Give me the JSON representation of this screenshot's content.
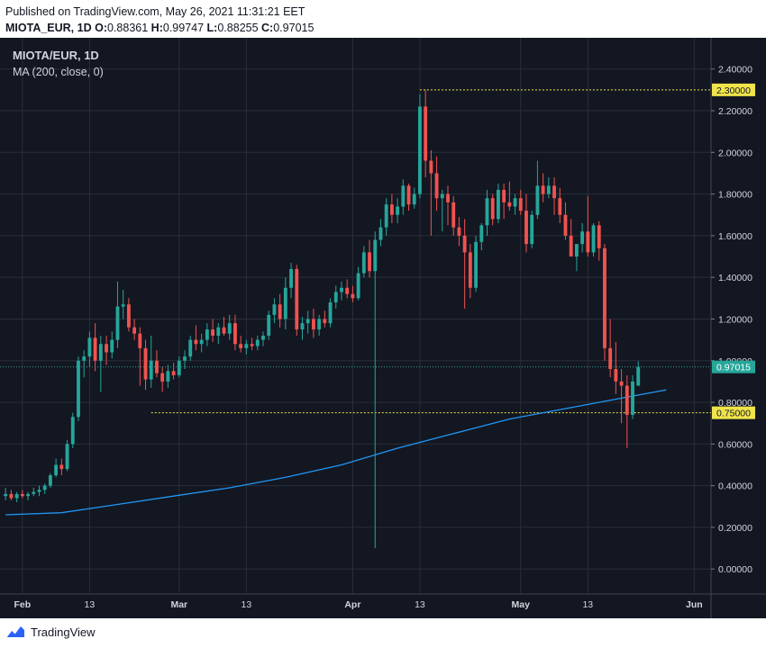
{
  "header": {
    "published": "Published on TradingView.com, May 26, 2021 11:31:21 EET",
    "symbol": "MIOTA_EUR, 1D",
    "o_label": "O:",
    "o_value": "0.88361",
    "h_label": "H:",
    "h_value": "0.99747",
    "l_label": "L:",
    "l_value": "0.88255",
    "c_label": "C:",
    "c_value": "0.97015"
  },
  "legend": {
    "title": "MIOTA/EUR, 1D",
    "indicator": "MA (200, close, 0)"
  },
  "footer": {
    "brand": "TradingView"
  },
  "colors": {
    "background": "#131722",
    "up": "#26a69a",
    "down": "#ef5350",
    "ma": "#2196f3",
    "level_line": "#f0e44a",
    "current_line": "#26a69a",
    "grid": "#2a2e39",
    "axis_text": "#d1d4dc"
  },
  "chart_data": {
    "type": "candlestick",
    "title": "MIOTA/EUR, 1D",
    "y_ticks": [
      "2.40000",
      "2.20000",
      "2.00000",
      "1.80000",
      "1.60000",
      "1.40000",
      "1.20000",
      "1.00000",
      "0.80000",
      "0.60000",
      "0.40000",
      "0.20000",
      "0.00000"
    ],
    "ylim": [
      -0.12,
      2.55
    ],
    "x_ticks": [
      {
        "label": "Feb",
        "day": 3
      },
      {
        "label": "13",
        "day": 15
      },
      {
        "label": "Mar",
        "day": 31
      },
      {
        "label": "13",
        "day": 43
      },
      {
        "label": "Apr",
        "day": 62
      },
      {
        "label": "13",
        "day": 74
      },
      {
        "label": "May",
        "day": 92
      },
      {
        "label": "13",
        "day": 104
      },
      {
        "label": "Jun",
        "day": 123
      }
    ],
    "xlim": [
      -1,
      126
    ],
    "candles": [
      {
        "o": 0.35,
        "h": 0.39,
        "l": 0.33,
        "c": 0.36
      },
      {
        "o": 0.36,
        "h": 0.38,
        "l": 0.33,
        "c": 0.34
      },
      {
        "o": 0.34,
        "h": 0.37,
        "l": 0.32,
        "c": 0.36
      },
      {
        "o": 0.36,
        "h": 0.38,
        "l": 0.34,
        "c": 0.35
      },
      {
        "o": 0.35,
        "h": 0.37,
        "l": 0.33,
        "c": 0.36
      },
      {
        "o": 0.36,
        "h": 0.39,
        "l": 0.35,
        "c": 0.37
      },
      {
        "o": 0.37,
        "h": 0.4,
        "l": 0.35,
        "c": 0.38
      },
      {
        "o": 0.38,
        "h": 0.41,
        "l": 0.36,
        "c": 0.4
      },
      {
        "o": 0.4,
        "h": 0.46,
        "l": 0.39,
        "c": 0.45
      },
      {
        "o": 0.45,
        "h": 0.53,
        "l": 0.44,
        "c": 0.5
      },
      {
        "o": 0.5,
        "h": 0.53,
        "l": 0.45,
        "c": 0.48
      },
      {
        "o": 0.48,
        "h": 0.62,
        "l": 0.47,
        "c": 0.6
      },
      {
        "o": 0.6,
        "h": 0.75,
        "l": 0.58,
        "c": 0.73
      },
      {
        "o": 0.73,
        "h": 1.02,
        "l": 0.71,
        "c": 1.0
      },
      {
        "o": 1.0,
        "h": 1.05,
        "l": 0.92,
        "c": 1.02
      },
      {
        "o": 1.02,
        "h": 1.14,
        "l": 0.97,
        "c": 1.11
      },
      {
        "o": 1.11,
        "h": 1.18,
        "l": 0.95,
        "c": 1.0
      },
      {
        "o": 1.0,
        "h": 1.12,
        "l": 0.85,
        "c": 1.08
      },
      {
        "o": 1.08,
        "h": 1.12,
        "l": 0.98,
        "c": 1.04
      },
      {
        "o": 1.04,
        "h": 1.14,
        "l": 1.01,
        "c": 1.1
      },
      {
        "o": 1.1,
        "h": 1.38,
        "l": 1.06,
        "c": 1.26
      },
      {
        "o": 1.26,
        "h": 1.34,
        "l": 1.2,
        "c": 1.27
      },
      {
        "o": 1.27,
        "h": 1.3,
        "l": 1.14,
        "c": 1.16
      },
      {
        "o": 1.16,
        "h": 1.2,
        "l": 1.1,
        "c": 1.13
      },
      {
        "o": 1.13,
        "h": 1.16,
        "l": 0.88,
        "c": 1.06
      },
      {
        "o": 1.06,
        "h": 1.1,
        "l": 0.86,
        "c": 0.91
      },
      {
        "o": 0.91,
        "h": 1.12,
        "l": 0.87,
        "c": 1.0
      },
      {
        "o": 1.0,
        "h": 1.05,
        "l": 0.92,
        "c": 0.94
      },
      {
        "o": 0.94,
        "h": 0.97,
        "l": 0.85,
        "c": 0.9
      },
      {
        "o": 0.9,
        "h": 0.98,
        "l": 0.87,
        "c": 0.95
      },
      {
        "o": 0.95,
        "h": 0.99,
        "l": 0.91,
        "c": 0.93
      },
      {
        "o": 0.93,
        "h": 1.02,
        "l": 0.92,
        "c": 1.0
      },
      {
        "o": 1.0,
        "h": 1.05,
        "l": 0.96,
        "c": 1.02
      },
      {
        "o": 1.02,
        "h": 1.12,
        "l": 1.0,
        "c": 1.1
      },
      {
        "o": 1.1,
        "h": 1.17,
        "l": 1.05,
        "c": 1.08
      },
      {
        "o": 1.08,
        "h": 1.13,
        "l": 1.04,
        "c": 1.1
      },
      {
        "o": 1.1,
        "h": 1.18,
        "l": 1.07,
        "c": 1.15
      },
      {
        "o": 1.15,
        "h": 1.2,
        "l": 1.09,
        "c": 1.12
      },
      {
        "o": 1.12,
        "h": 1.18,
        "l": 1.08,
        "c": 1.16
      },
      {
        "o": 1.16,
        "h": 1.21,
        "l": 1.12,
        "c": 1.13
      },
      {
        "o": 1.13,
        "h": 1.22,
        "l": 1.1,
        "c": 1.18
      },
      {
        "o": 1.18,
        "h": 1.22,
        "l": 1.05,
        "c": 1.08
      },
      {
        "o": 1.08,
        "h": 1.12,
        "l": 1.04,
        "c": 1.06
      },
      {
        "o": 1.06,
        "h": 1.1,
        "l": 1.03,
        "c": 1.08
      },
      {
        "o": 1.08,
        "h": 1.11,
        "l": 1.05,
        "c": 1.07
      },
      {
        "o": 1.07,
        "h": 1.12,
        "l": 1.05,
        "c": 1.1
      },
      {
        "o": 1.1,
        "h": 1.14,
        "l": 1.07,
        "c": 1.12
      },
      {
        "o": 1.12,
        "h": 1.24,
        "l": 1.1,
        "c": 1.22
      },
      {
        "o": 1.22,
        "h": 1.3,
        "l": 1.18,
        "c": 1.27
      },
      {
        "o": 1.27,
        "h": 1.32,
        "l": 1.16,
        "c": 1.2
      },
      {
        "o": 1.2,
        "h": 1.4,
        "l": 1.15,
        "c": 1.35
      },
      {
        "o": 1.35,
        "h": 1.47,
        "l": 1.3,
        "c": 1.44
      },
      {
        "o": 1.44,
        "h": 1.46,
        "l": 1.12,
        "c": 1.15
      },
      {
        "o": 1.15,
        "h": 1.21,
        "l": 1.1,
        "c": 1.18
      },
      {
        "o": 1.18,
        "h": 1.24,
        "l": 1.13,
        "c": 1.2
      },
      {
        "o": 1.2,
        "h": 1.25,
        "l": 1.11,
        "c": 1.15
      },
      {
        "o": 1.15,
        "h": 1.22,
        "l": 1.12,
        "c": 1.2
      },
      {
        "o": 1.2,
        "h": 1.24,
        "l": 1.16,
        "c": 1.18
      },
      {
        "o": 1.18,
        "h": 1.3,
        "l": 1.16,
        "c": 1.28
      },
      {
        "o": 1.28,
        "h": 1.36,
        "l": 1.25,
        "c": 1.33
      },
      {
        "o": 1.33,
        "h": 1.38,
        "l": 1.29,
        "c": 1.35
      },
      {
        "o": 1.35,
        "h": 1.39,
        "l": 1.3,
        "c": 1.32
      },
      {
        "o": 1.32,
        "h": 1.36,
        "l": 1.28,
        "c": 1.3
      },
      {
        "o": 1.3,
        "h": 1.45,
        "l": 1.29,
        "c": 1.42
      },
      {
        "o": 1.42,
        "h": 1.55,
        "l": 1.4,
        "c": 1.52
      },
      {
        "o": 1.52,
        "h": 1.58,
        "l": 1.4,
        "c": 1.43
      },
      {
        "o": 1.43,
        "h": 1.62,
        "l": 0.1,
        "c": 1.58
      },
      {
        "o": 1.58,
        "h": 1.68,
        "l": 1.55,
        "c": 1.64
      },
      {
        "o": 1.64,
        "h": 1.78,
        "l": 1.6,
        "c": 1.75
      },
      {
        "o": 1.75,
        "h": 1.8,
        "l": 1.66,
        "c": 1.7
      },
      {
        "o": 1.7,
        "h": 1.78,
        "l": 1.66,
        "c": 1.74
      },
      {
        "o": 1.74,
        "h": 1.87,
        "l": 1.7,
        "c": 1.84
      },
      {
        "o": 1.84,
        "h": 1.85,
        "l": 1.72,
        "c": 1.75
      },
      {
        "o": 1.75,
        "h": 1.83,
        "l": 1.73,
        "c": 1.8
      },
      {
        "o": 1.8,
        "h": 2.28,
        "l": 1.78,
        "c": 2.22
      },
      {
        "o": 2.22,
        "h": 2.3,
        "l": 1.88,
        "c": 1.96
      },
      {
        "o": 1.96,
        "h": 2.01,
        "l": 1.6,
        "c": 1.9
      },
      {
        "o": 1.9,
        "h": 1.98,
        "l": 1.72,
        "c": 1.78
      },
      {
        "o": 1.78,
        "h": 1.82,
        "l": 1.62,
        "c": 1.8
      },
      {
        "o": 1.8,
        "h": 1.84,
        "l": 1.65,
        "c": 1.76
      },
      {
        "o": 1.76,
        "h": 1.79,
        "l": 1.6,
        "c": 1.64
      },
      {
        "o": 1.64,
        "h": 1.69,
        "l": 1.55,
        "c": 1.6
      },
      {
        "o": 1.6,
        "h": 1.68,
        "l": 1.25,
        "c": 1.52
      },
      {
        "o": 1.52,
        "h": 1.56,
        "l": 1.3,
        "c": 1.35
      },
      {
        "o": 1.35,
        "h": 1.6,
        "l": 1.33,
        "c": 1.57
      },
      {
        "o": 1.57,
        "h": 1.66,
        "l": 1.53,
        "c": 1.65
      },
      {
        "o": 1.65,
        "h": 1.82,
        "l": 1.6,
        "c": 1.78
      },
      {
        "o": 1.78,
        "h": 1.8,
        "l": 1.65,
        "c": 1.68
      },
      {
        "o": 1.68,
        "h": 1.85,
        "l": 1.66,
        "c": 1.82
      },
      {
        "o": 1.82,
        "h": 1.85,
        "l": 1.68,
        "c": 1.76
      },
      {
        "o": 1.76,
        "h": 1.86,
        "l": 1.72,
        "c": 1.74
      },
      {
        "o": 1.74,
        "h": 1.8,
        "l": 1.7,
        "c": 1.78
      },
      {
        "o": 1.78,
        "h": 1.82,
        "l": 1.7,
        "c": 1.72
      },
      {
        "o": 1.72,
        "h": 1.8,
        "l": 1.52,
        "c": 1.56
      },
      {
        "o": 1.56,
        "h": 1.72,
        "l": 1.54,
        "c": 1.7
      },
      {
        "o": 1.7,
        "h": 1.96,
        "l": 1.68,
        "c": 1.84
      },
      {
        "o": 1.84,
        "h": 1.9,
        "l": 1.76,
        "c": 1.8
      },
      {
        "o": 1.8,
        "h": 1.88,
        "l": 1.78,
        "c": 1.84
      },
      {
        "o": 1.84,
        "h": 1.88,
        "l": 1.7,
        "c": 1.78
      },
      {
        "o": 1.78,
        "h": 1.83,
        "l": 1.66,
        "c": 1.7
      },
      {
        "o": 1.7,
        "h": 1.76,
        "l": 1.58,
        "c": 1.6
      },
      {
        "o": 1.6,
        "h": 1.68,
        "l": 1.52,
        "c": 1.5
      },
      {
        "o": 1.5,
        "h": 1.56,
        "l": 1.43,
        "c": 1.56
      },
      {
        "o": 1.56,
        "h": 1.66,
        "l": 1.52,
        "c": 1.62
      },
      {
        "o": 1.62,
        "h": 1.79,
        "l": 1.5,
        "c": 1.52
      },
      {
        "o": 1.52,
        "h": 1.66,
        "l": 1.5,
        "c": 1.65
      },
      {
        "o": 1.65,
        "h": 1.67,
        "l": 1.48,
        "c": 1.54
      },
      {
        "o": 1.54,
        "h": 1.56,
        "l": 1.0,
        "c": 1.06
      },
      {
        "o": 1.06,
        "h": 1.2,
        "l": 0.92,
        "c": 0.96
      },
      {
        "o": 0.96,
        "h": 1.09,
        "l": 0.84,
        "c": 0.9
      },
      {
        "o": 0.9,
        "h": 0.96,
        "l": 0.7,
        "c": 0.88
      },
      {
        "o": 0.88,
        "h": 0.93,
        "l": 0.58,
        "c": 0.74
      },
      {
        "o": 0.74,
        "h": 0.93,
        "l": 0.72,
        "c": 0.9
      },
      {
        "o": 0.88,
        "h": 0.99747,
        "l": 0.88255,
        "c": 0.97015
      }
    ],
    "moving_average": {
      "name": "MA (200, close, 0)",
      "points": [
        {
          "day": 0,
          "value": 0.26
        },
        {
          "day": 10,
          "value": 0.27
        },
        {
          "day": 20,
          "value": 0.31
        },
        {
          "day": 30,
          "value": 0.35
        },
        {
          "day": 40,
          "value": 0.39
        },
        {
          "day": 50,
          "value": 0.44
        },
        {
          "day": 60,
          "value": 0.5
        },
        {
          "day": 70,
          "value": 0.58
        },
        {
          "day": 80,
          "value": 0.65
        },
        {
          "day": 90,
          "value": 0.72
        },
        {
          "day": 100,
          "value": 0.77
        },
        {
          "day": 110,
          "value": 0.82
        },
        {
          "day": 116,
          "value": 0.85
        },
        {
          "day": 118,
          "value": 0.86
        }
      ]
    },
    "levels": [
      {
        "value": 2.3,
        "label": "2.30000",
        "start_day": 74
      },
      {
        "value": 0.75,
        "label": "0.75000",
        "start_day": 26
      }
    ],
    "current_price": {
      "value": 0.97015,
      "label": "0.97015"
    }
  }
}
